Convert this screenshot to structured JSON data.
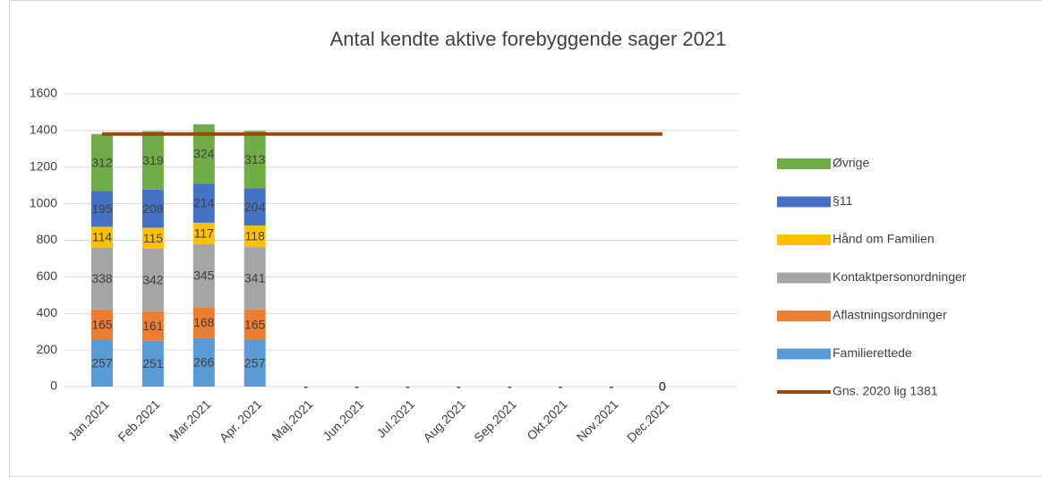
{
  "chart_data": {
    "type": "stacked_bar_line",
    "title": "Antal kendte aktive forebyggende sager 2021",
    "categories": [
      "Jan.2021",
      "Feb.2021",
      "Mar.2021",
      "Apr. 2021",
      "Maj.2021",
      "Jun.2021",
      "Jul.2021",
      "Aug.2021",
      "Sep.2021",
      "Okt.2021",
      "Nov.2021",
      "Dec.2021"
    ],
    "series": [
      {
        "name": "Familierettede",
        "color": "#5b9bd5",
        "values": [
          257,
          251,
          266,
          257,
          0,
          0,
          0,
          0,
          0,
          0,
          0,
          0
        ],
        "value_labels": [
          "257",
          "251",
          "266",
          "257",
          "-",
          "-",
          "-",
          "-",
          "-",
          "-",
          "-",
          "0"
        ]
      },
      {
        "name": "Aflastningsordninger",
        "color": "#ed7d31",
        "values": [
          165,
          161,
          168,
          165,
          0,
          0,
          0,
          0,
          0,
          0,
          0,
          0
        ],
        "value_labels": [
          "165",
          "161",
          "168",
          "165",
          "-",
          "-",
          "-",
          "-",
          "-",
          "-",
          "-",
          "0"
        ]
      },
      {
        "name": "Kontaktpersonordninger",
        "color": "#a5a5a5",
        "values": [
          338,
          342,
          345,
          341,
          0,
          0,
          0,
          0,
          0,
          0,
          0,
          0
        ],
        "value_labels": [
          "338",
          "342",
          "345",
          "341",
          "-",
          "-",
          "-",
          "-",
          "-",
          "-",
          "-",
          "0"
        ]
      },
      {
        "name": "Hånd om Familien",
        "color": "#ffc000",
        "values": [
          114,
          115,
          117,
          118,
          0,
          0,
          0,
          0,
          0,
          0,
          0,
          0
        ],
        "value_labels": [
          "114",
          "115",
          "117",
          "118",
          "-",
          "-",
          "-",
          "-",
          "-",
          "-",
          "-",
          "0"
        ]
      },
      {
        "name": "§11",
        "color": "#4472c4",
        "values": [
          195,
          208,
          214,
          204,
          0,
          0,
          0,
          0,
          0,
          0,
          0,
          0
        ],
        "value_labels": [
          "195",
          "208",
          "214",
          "204",
          "-",
          "-",
          "-",
          "-",
          "-",
          "-",
          "-",
          "0"
        ]
      },
      {
        "name": "Øvrige",
        "color": "#70ad47",
        "values": [
          312,
          319,
          324,
          313,
          0,
          0,
          0,
          0,
          0,
          0,
          0,
          0
        ],
        "value_labels": [
          "312",
          "319",
          "324",
          "313",
          "-",
          "-",
          "-",
          "-",
          "-",
          "-",
          "-",
          "0"
        ]
      }
    ],
    "line": {
      "name": "Gns. 2020 lig 1381",
      "color": "#9e480e",
      "values": [
        1381,
        1381,
        1381,
        1381,
        1381,
        1381,
        1381,
        1381,
        1381,
        1381,
        1381,
        1381
      ]
    },
    "ylim": [
      0,
      1600
    ],
    "yticks": [
      0,
      200,
      400,
      600,
      800,
      1000,
      1200,
      1400,
      1600
    ],
    "grid": true,
    "legend": "right"
  }
}
